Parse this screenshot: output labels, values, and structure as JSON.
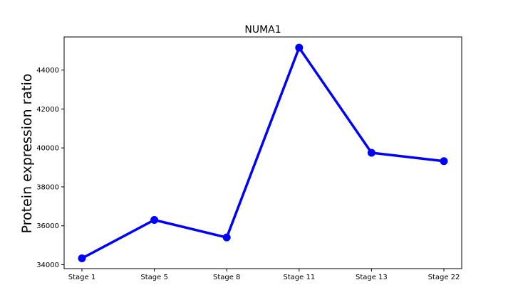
{
  "chart_data": {
    "type": "line",
    "title": "NUMA1",
    "xlabel": "",
    "ylabel": "Protein expression ratio",
    "categories": [
      "Stage 1",
      "Stage 5",
      "Stage 8",
      "Stage 11",
      "Stage 13",
      "Stage 22"
    ],
    "series": [
      {
        "values": [
          34330,
          36300,
          35400,
          45150,
          39750,
          39320
        ],
        "color": "#0000ff",
        "marker": "circle"
      }
    ],
    "ylim": [
      33800,
      45700
    ],
    "yticks": [
      34000,
      36000,
      38000,
      40000,
      42000,
      44000
    ],
    "grid": false,
    "legend": "none"
  }
}
